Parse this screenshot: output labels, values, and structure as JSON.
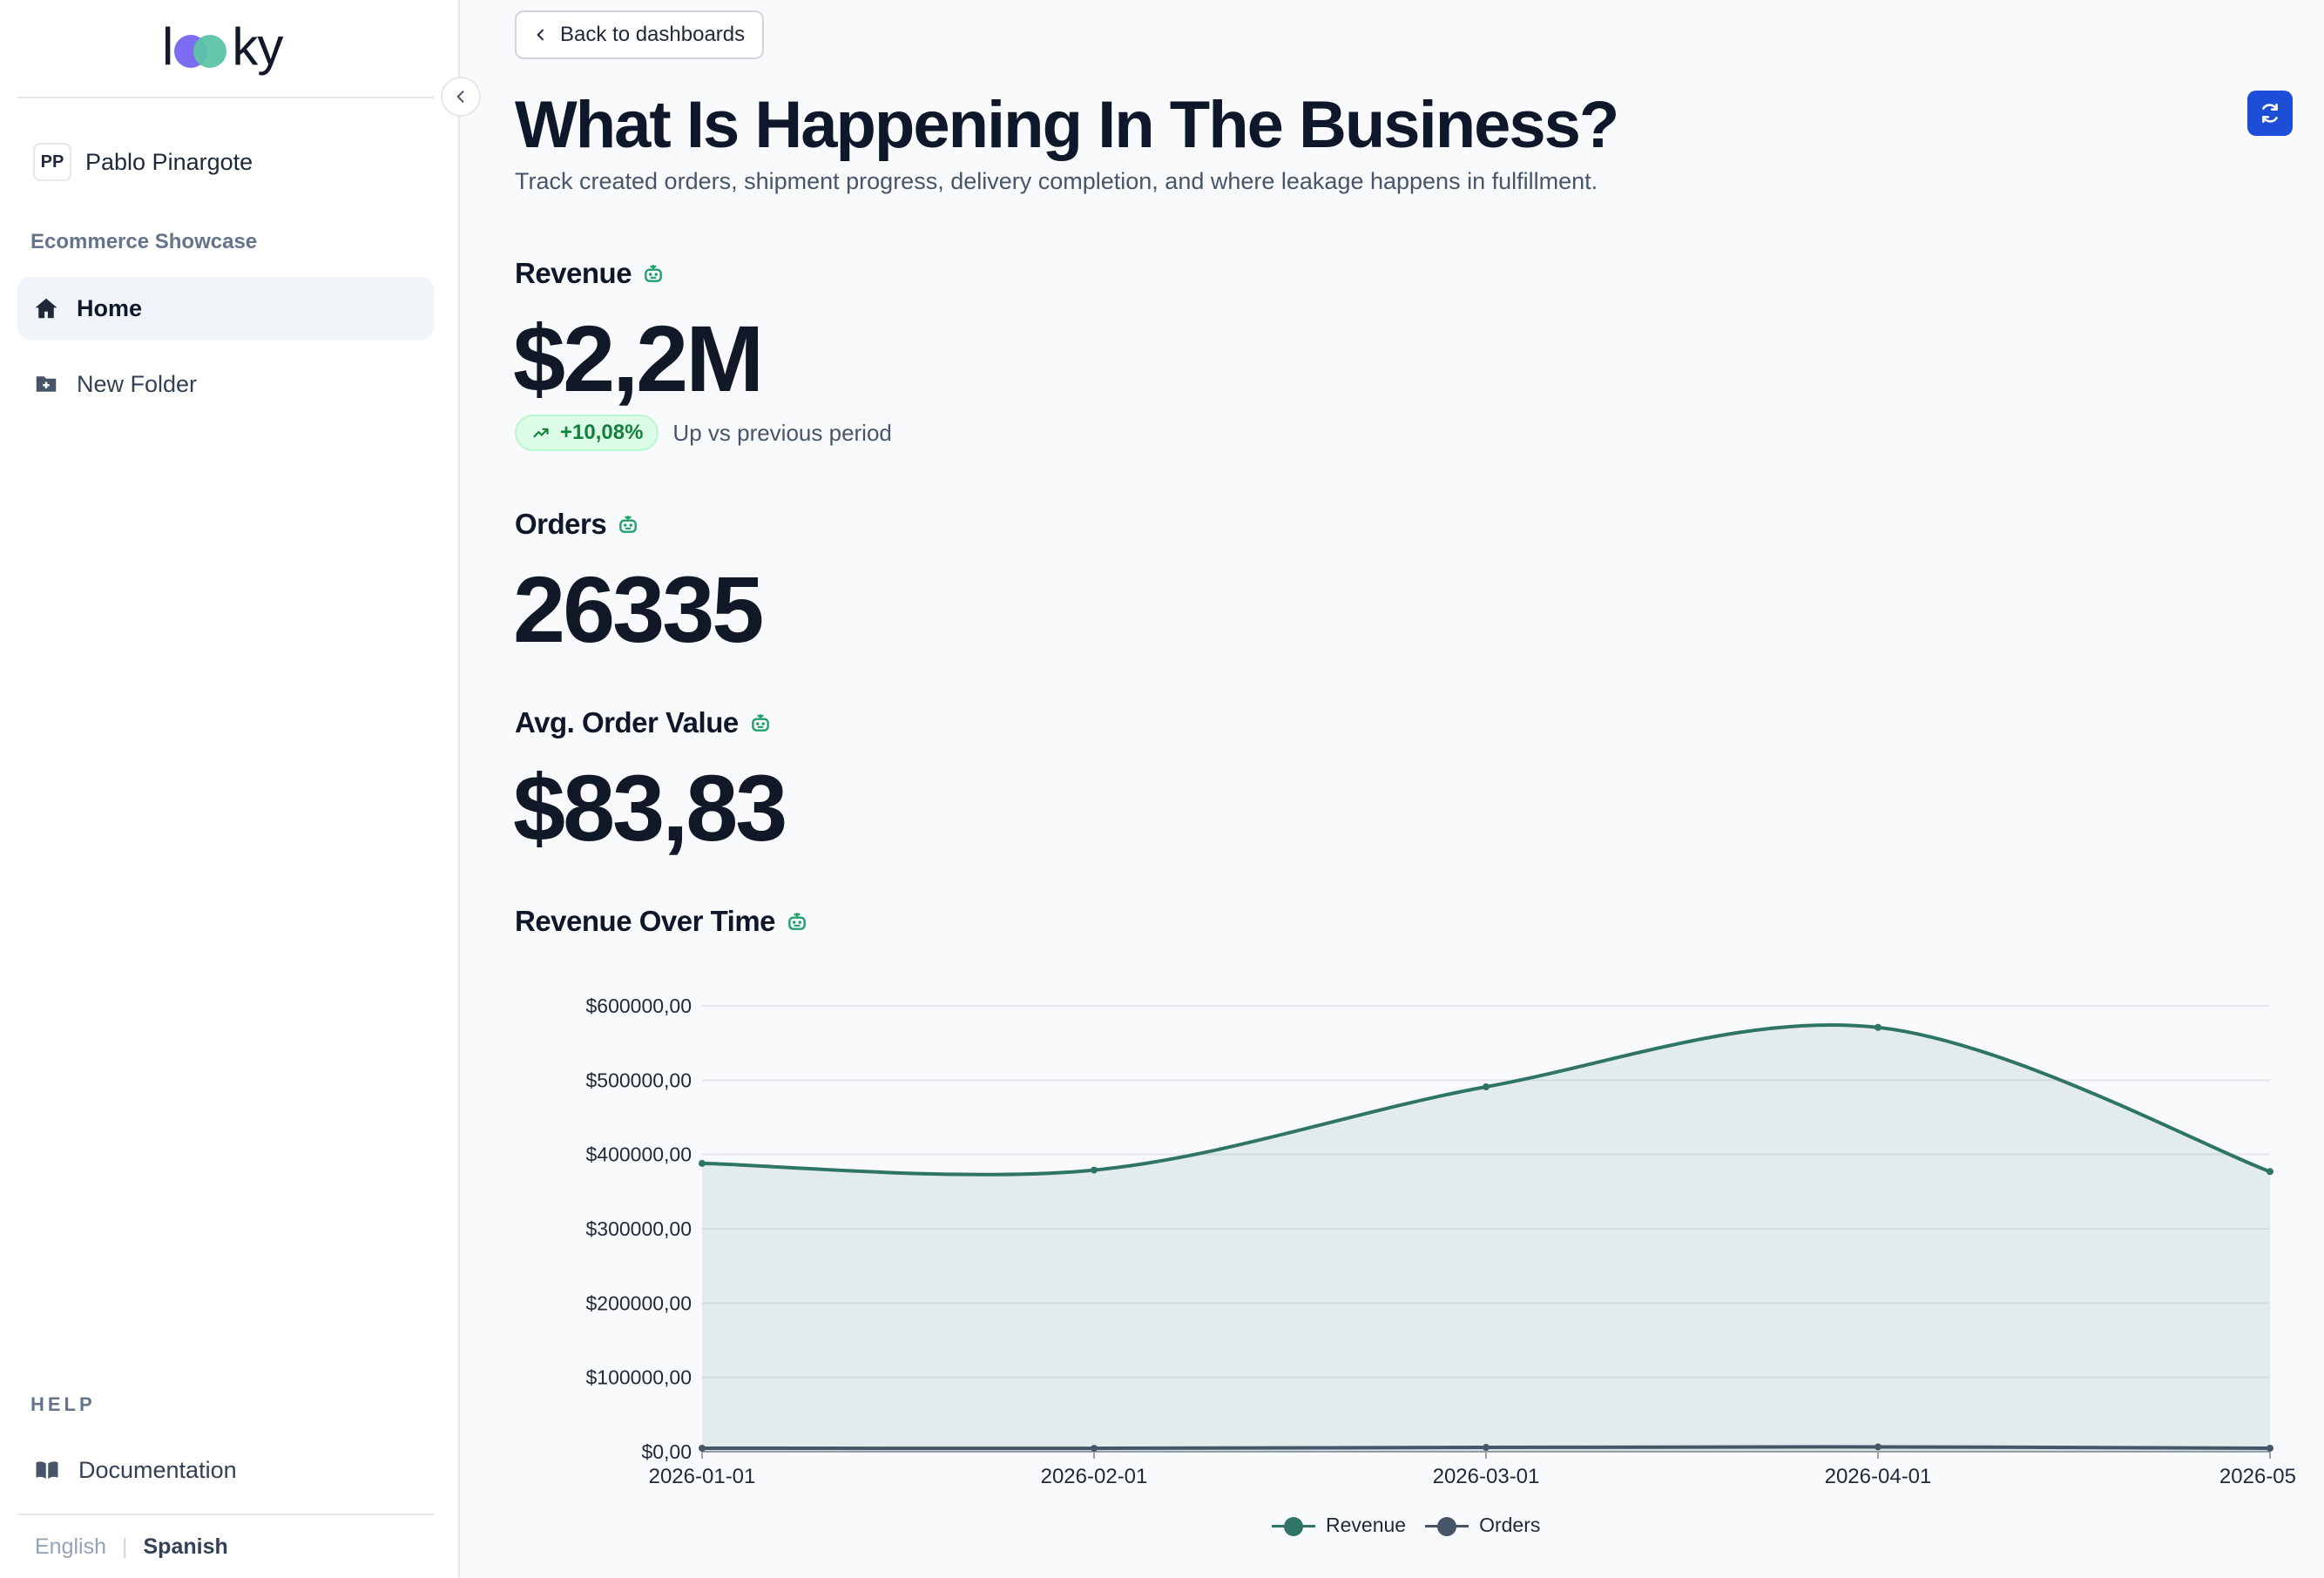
{
  "app": {
    "logo_text_left": "l",
    "logo_text_right": "ky"
  },
  "sidebar": {
    "user": {
      "initials": "PP",
      "name": "Pablo Pinargote"
    },
    "workspace_label": "Ecommerce Showcase",
    "items": [
      {
        "label": "Home",
        "icon": "home-icon",
        "active": true
      },
      {
        "label": "New Folder",
        "icon": "folder-plus-icon",
        "active": false
      }
    ],
    "help_label": "HELP",
    "help_items": [
      {
        "label": "Documentation",
        "icon": "book-icon"
      }
    ],
    "languages": {
      "english": "English",
      "separator": "|",
      "spanish": "Spanish",
      "selected": "Spanish"
    }
  },
  "header": {
    "back_label": "Back to dashboards",
    "title": "What Is Happening In The Business?",
    "subtitle": "Track created orders, shipment progress, delivery completion, and where leakage happens in fulfillment."
  },
  "metrics": {
    "revenue": {
      "label": "Revenue",
      "value": "$2,2M",
      "delta": "+10,08%",
      "delta_text": "Up vs previous period"
    },
    "orders": {
      "label": "Orders",
      "value": "26335"
    },
    "aov": {
      "label": "Avg. Order Value",
      "value": "$83,83"
    }
  },
  "colors": {
    "accent": "#1d4ed8",
    "revenue_series": "#2f7566",
    "orders_series": "#475569",
    "positive": "#15803d"
  },
  "chart_data": {
    "type": "area",
    "title": "Revenue Over Time",
    "x": [
      "2026-01-01",
      "2026-02-01",
      "2026-03-01",
      "2026-04-01",
      "2026-05"
    ],
    "series": [
      {
        "name": "Revenue",
        "values": [
          388000,
          379000,
          491000,
          571000,
          377000
        ]
      },
      {
        "name": "Orders",
        "values": [
          4700,
          4600,
          5800,
          6500,
          4700
        ]
      }
    ],
    "y_ticks": [
      "$0,00",
      "$100000,00",
      "$200000,00",
      "$300000,00",
      "$400000,00",
      "$500000,00",
      "$600000,00"
    ],
    "ylim": [
      0,
      600000
    ],
    "grid": true,
    "legend": "bottom-center"
  }
}
